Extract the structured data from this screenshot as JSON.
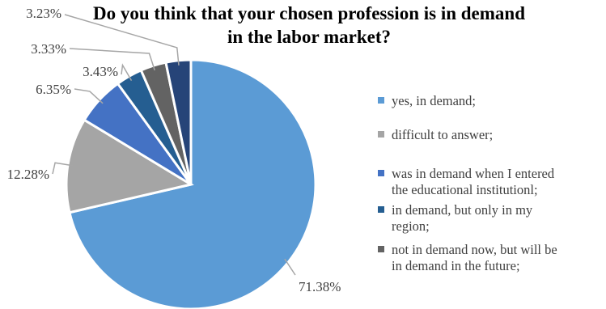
{
  "chart_data": {
    "type": "pie",
    "title_lines": [
      "Do you think that your chosen profession is in demand",
      "in the labor market?"
    ],
    "slices": [
      {
        "label": "yes, in demand;",
        "value": 71.38,
        "value_label": "71.38%",
        "color": "#5B9BD5"
      },
      {
        "label": "difficult to answer;",
        "value": 12.28,
        "value_label": "12.28%",
        "color": "#A5A5A5"
      },
      {
        "label": "was in demand when I entered the educational institutionl;",
        "value": 6.35,
        "value_label": "6.35%",
        "color": "#4472C4"
      },
      {
        "label": "in demand, but only in my region;",
        "value": 3.43,
        "value_label": "3.43%",
        "color": "#255E91"
      },
      {
        "label": "not in demand now, but will be in demand in the future;",
        "value": 3.33,
        "value_label": "3.33%",
        "color": "#636363"
      },
      {
        "label": "",
        "value": 3.23,
        "value_label": "3.23%",
        "color": "#264478"
      }
    ],
    "legend": [
      {
        "lines": [
          "yes, in demand;"
        ],
        "color": "#5B9BD5"
      },
      {
        "lines": [
          "difficult to answer;"
        ],
        "color": "#A5A5A5"
      },
      {
        "lines": [
          "was in demand when I entered",
          "the educational institutionl;"
        ],
        "color": "#4472C4"
      },
      {
        "lines": [
          "in demand, but only in my",
          "region;"
        ],
        "color": "#255E91"
      },
      {
        "lines": [
          "not in demand now, but will be",
          "in demand in the future;"
        ],
        "color": "#636363"
      }
    ],
    "legend_position": "right"
  }
}
